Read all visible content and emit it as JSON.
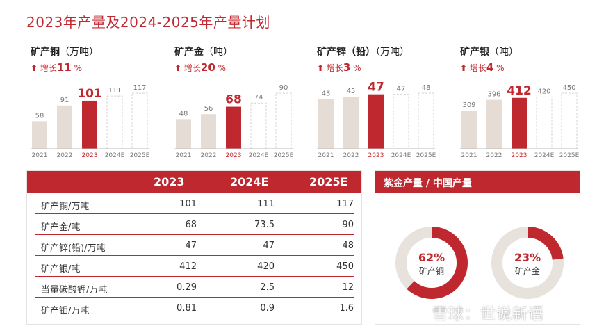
{
  "title": "2023年产量及2024-2025年产量计划",
  "colors": {
    "accent": "#c0282f",
    "past": "#e5ddd5",
    "plan_border": "#d9d2cb",
    "track": "#e8e2dc"
  },
  "chart_data": [
    {
      "type": "bar",
      "title": "矿产铜",
      "unit": "（万吨）",
      "growth_label": "增长",
      "growth_value": "11",
      "growth_suffix": "%",
      "categories": [
        "2021",
        "2022",
        "2023",
        "2024E",
        "2025E"
      ],
      "values": [
        58,
        91,
        101,
        111,
        117
      ],
      "value_labels": [
        "58",
        "91",
        "101",
        "111",
        "117"
      ],
      "highlight_index": 2,
      "plan_indices": [
        3,
        4
      ]
    },
    {
      "type": "bar",
      "title": "矿产金",
      "unit": "（吨）",
      "growth_label": "增长",
      "growth_value": "20",
      "growth_suffix": "%",
      "categories": [
        "2021",
        "2022",
        "2023",
        "2024E",
        "2025E"
      ],
      "values": [
        48,
        56,
        68,
        74,
        90
      ],
      "value_labels": [
        "48",
        "56",
        "68",
        "74",
        "90"
      ],
      "highlight_index": 2,
      "plan_indices": [
        3,
        4
      ]
    },
    {
      "type": "bar",
      "title": "矿产锌（铅）",
      "unit": "（万吨）",
      "growth_label": "增长",
      "growth_value": "3",
      "growth_suffix": "%",
      "categories": [
        "2021",
        "2022",
        "2023",
        "2024E",
        "2025E"
      ],
      "values": [
        43,
        45,
        47,
        47,
        48
      ],
      "value_labels": [
        "43",
        "45",
        "47",
        "47",
        "48"
      ],
      "highlight_index": 2,
      "plan_indices": [
        3,
        4
      ]
    },
    {
      "type": "bar",
      "title": "矿产银",
      "unit": "（吨）",
      "growth_label": "增长",
      "growth_value": "4",
      "growth_suffix": "%",
      "categories": [
        "2021",
        "2022",
        "2023",
        "2024E",
        "2025E"
      ],
      "values": [
        309,
        396,
        412,
        420,
        450
      ],
      "value_labels": [
        "309",
        "396",
        "412",
        "420",
        "450"
      ],
      "highlight_index": 2,
      "plan_indices": [
        3,
        4
      ]
    },
    {
      "type": "table",
      "columns": [
        "",
        "2023",
        "2024E",
        "2025E"
      ],
      "rows": [
        [
          "矿产铜/万吨",
          "101",
          "111",
          "117"
        ],
        [
          "矿产金/吨",
          "68",
          "73.5",
          "90"
        ],
        [
          "矿产锌(铅)/万吨",
          "47",
          "47",
          "48"
        ],
        [
          "矿产银/吨",
          "412",
          "420",
          "450"
        ],
        [
          "当量碳酸锂/万吨",
          "0.29",
          "2.5",
          "12"
        ],
        [
          "矿产钼/万吨",
          "0.81",
          "0.9",
          "1.6"
        ]
      ]
    },
    {
      "type": "pie",
      "title": "紫金产量 / 中国产量",
      "slices": [
        {
          "label": "矿产铜",
          "value": 62,
          "text": "62%"
        },
        {
          "label": "矿产金",
          "value": 23,
          "text": "23%"
        }
      ]
    }
  ],
  "watermark": "雪球：世说新语"
}
